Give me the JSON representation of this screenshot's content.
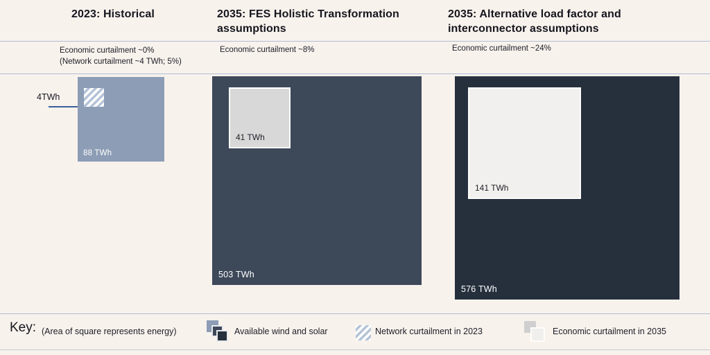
{
  "chart_data": {
    "type": "area-proportional-squares",
    "note": "Area of each square represents energy in TWh",
    "unit": "TWh",
    "panels": [
      {
        "title": "2023: Historical",
        "subtitles": [
          "Economic curtailment ~0%",
          "(Network curtailment ~4 TWh; 5%)"
        ],
        "available": {
          "label": "88 TWh",
          "value_twh": 88
        },
        "curtailed": {
          "label": "4TWh",
          "value_twh": 4,
          "kind": "network_curtailment_2023",
          "fill": "hatched"
        }
      },
      {
        "title": "2035: FES Holistic Transformation assumptions",
        "subtitles": [
          "Economic curtailment ~8%"
        ],
        "available": {
          "label": "503 TWh",
          "value_twh": 503
        },
        "curtailed": {
          "label": "41 TWh",
          "value_twh": 41,
          "kind": "economic_curtailment_2035",
          "fill": "solid"
        }
      },
      {
        "title": "2035: Alternative load factor and interconnector assumptions",
        "subtitles": [
          "Economic curtailment ~24%"
        ],
        "available": {
          "label": "576 TWh",
          "value_twh": 576
        },
        "curtailed": {
          "label": "141 TWh",
          "value_twh": 141,
          "kind": "economic_curtailment_2035",
          "fill": "solid"
        }
      }
    ],
    "colors": {
      "background": "#f8f2ed",
      "divider_line": "#adbdd2",
      "available_2023": "#8c9db5",
      "available_2035_fes": "#3d4859",
      "available_2035_alt": "#26303d",
      "economic_curtailment_fes": "#d8d8d8",
      "economic_curtailment_alt": "#f2f0ee",
      "hatch_stripe": "#b4c3d7",
      "callout_line": "#3a5f99"
    },
    "legend_position": "bottom"
  },
  "key": {
    "label": "Key:",
    "note": "(Area of square represents energy)",
    "items": [
      {
        "label": "Available wind and solar",
        "icon": "stacked-squares-icon"
      },
      {
        "label": "Network curtailment in 2023",
        "icon": "hatched-square-icon"
      },
      {
        "label": "Economic curtailment in 2035",
        "icon": "overlapping-light-squares-icon"
      }
    ]
  }
}
